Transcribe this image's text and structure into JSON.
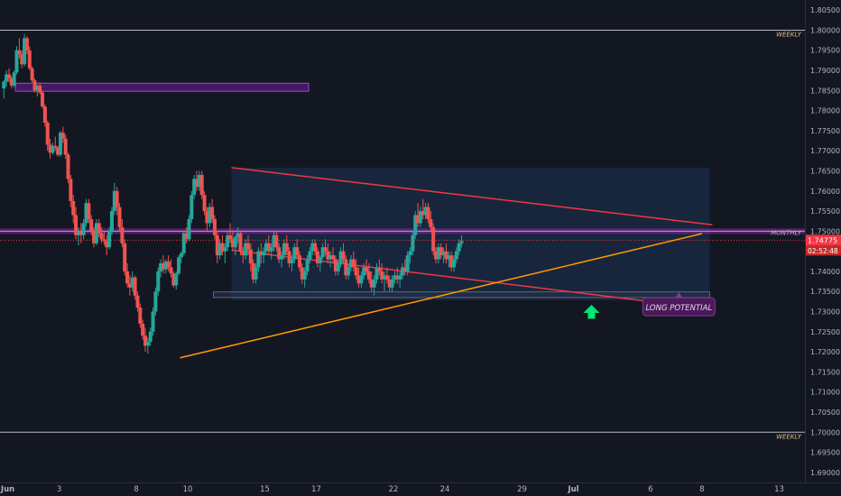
{
  "colors": {
    "background": "#131722",
    "up": "#26a69a",
    "down": "#ef5350",
    "axis_text": "#b2b5be",
    "level_line": "#d1d4dc",
    "monthly_line": "#9c27b0",
    "wedge_line": "#f23645",
    "trend_line": "#ff9800",
    "zone_fill": "#1c3a5e",
    "supply_box": "#6a1b9a",
    "arrow": "#00e676",
    "price_tag": "#f23645",
    "label_bg": "#4a1a5a"
  },
  "chart_data": {
    "type": "candlestick",
    "x_ticks": [
      {
        "label": "Jun",
        "x": 0
      },
      {
        "label": "3",
        "x": 2
      },
      {
        "label": "8",
        "x": 5
      },
      {
        "label": "10",
        "x": 7
      },
      {
        "label": "15",
        "x": 10
      },
      {
        "label": "17",
        "x": 12
      },
      {
        "label": "22",
        "x": 15
      },
      {
        "label": "24",
        "x": 17
      },
      {
        "label": "29",
        "x": 20
      },
      {
        "label": "Jul",
        "x": 22
      },
      {
        "label": "6",
        "x": 25
      },
      {
        "label": "8",
        "x": 27
      },
      {
        "label": "13",
        "x": 30
      }
    ],
    "y_ticks": [
      "1.80500",
      "1.80000",
      "1.79500",
      "1.79000",
      "1.78500",
      "1.78000",
      "1.77500",
      "1.77000",
      "1.76500",
      "1.76000",
      "1.75500",
      "1.75000",
      "1.74500",
      "1.74000",
      "1.73500",
      "1.73000",
      "1.72500",
      "1.72000",
      "1.71500",
      "1.71000",
      "1.70500",
      "1.70000",
      "1.69500",
      "1.69000"
    ],
    "ylim": [
      1.6875,
      1.8075
    ],
    "xlim": [
      -0.3,
      31
    ],
    "levels": [
      {
        "label": "WEEKLY",
        "price": 1.8,
        "x_start": -0.3,
        "x_end": 31
      },
      {
        "label": "WEEKLY",
        "price": 1.7,
        "x_start": -0.3,
        "x_end": 31
      },
      {
        "label": "MONTHLY",
        "price": 1.75,
        "x_start": -0.3,
        "x_end": 31
      }
    ],
    "current_price": {
      "value": 1.74775,
      "price_text": "1.74775",
      "timer": "02:52:48"
    },
    "supply_box": {
      "x_start": 0.3,
      "x_end": 11.7,
      "y_low": 1.7848,
      "y_high": 1.7868
    },
    "zone": {
      "x_start": 8.7,
      "x_end": 27.3,
      "y_low": 1.7328,
      "y_high": 1.7658
    },
    "zone_base": {
      "x_start": 8.0,
      "x_end": 27.3,
      "y_low": 1.7335,
      "y_high": 1.7349
    },
    "wedge_upper": {
      "x1": 8.7,
      "y1": 1.7658,
      "x2": 27.4,
      "y2": 1.7516
    },
    "wedge_lower": {
      "x1": 8.7,
      "y1": 1.7453,
      "x2": 27.4,
      "y2": 1.7306
    },
    "trend_line": {
      "x1": 6.7,
      "y1": 1.7185,
      "x2": 27.0,
      "y2": 1.7494
    },
    "annotation": {
      "text": "LONG POTENTIAL",
      "x": 26.1,
      "y": 1.7312
    },
    "arrow": {
      "x": 22.7,
      "y_top": 1.7317,
      "y_bottom": 1.7282
    },
    "candles": [
      [
        -0.15,
        1.7855,
        1.7875,
        1.783,
        1.7872
      ],
      [
        -0.05,
        1.7872,
        1.79,
        1.786,
        1.789
      ],
      [
        0.05,
        1.789,
        1.7905,
        1.787,
        1.788
      ],
      [
        0.15,
        1.788,
        1.7885,
        1.7855,
        1.7862
      ],
      [
        0.25,
        1.7862,
        1.79,
        1.7858,
        1.7895
      ],
      [
        0.35,
        1.7895,
        1.796,
        1.789,
        1.795
      ],
      [
        0.45,
        1.795,
        1.798,
        1.793,
        1.794
      ],
      [
        0.55,
        1.794,
        1.795,
        1.7905,
        1.7915
      ],
      [
        0.65,
        1.7915,
        1.799,
        1.791,
        1.798
      ],
      [
        0.75,
        1.798,
        1.7985,
        1.794,
        1.795
      ],
      [
        0.85,
        1.795,
        1.796,
        1.79,
        1.7905
      ],
      [
        0.95,
        1.7905,
        1.791,
        1.787,
        1.7875
      ],
      [
        1.05,
        1.7875,
        1.788,
        1.7845,
        1.785
      ],
      [
        1.15,
        1.785,
        1.7865,
        1.7835,
        1.7862
      ],
      [
        1.25,
        1.7862,
        1.787,
        1.784,
        1.7845
      ],
      [
        1.35,
        1.7845,
        1.785,
        1.7805,
        1.781
      ],
      [
        1.45,
        1.781,
        1.7815,
        1.776,
        1.777
      ],
      [
        1.55,
        1.777,
        1.7775,
        1.77,
        1.7715
      ],
      [
        1.65,
        1.7715,
        1.773,
        1.768,
        1.7695
      ],
      [
        1.75,
        1.7695,
        1.772,
        1.769,
        1.7712
      ],
      [
        1.85,
        1.7712,
        1.7735,
        1.77,
        1.7708
      ],
      [
        1.95,
        1.7708,
        1.7712,
        1.7685,
        1.769
      ],
      [
        2.05,
        1.769,
        1.775,
        1.7685,
        1.7745
      ],
      [
        2.15,
        1.7745,
        1.776,
        1.772,
        1.773
      ],
      [
        2.25,
        1.773,
        1.774,
        1.768,
        1.769
      ],
      [
        2.35,
        1.769,
        1.7695,
        1.762,
        1.763
      ],
      [
        2.45,
        1.763,
        1.764,
        1.756,
        1.7575
      ],
      [
        2.55,
        1.7575,
        1.759,
        1.752,
        1.754
      ],
      [
        2.65,
        1.754,
        1.756,
        1.748,
        1.749
      ],
      [
        2.75,
        1.749,
        1.751,
        1.7465,
        1.75
      ],
      [
        2.85,
        1.75,
        1.752,
        1.747,
        1.749
      ],
      [
        2.95,
        1.749,
        1.753,
        1.748,
        1.752
      ],
      [
        3.05,
        1.752,
        1.758,
        1.751,
        1.757
      ],
      [
        3.15,
        1.757,
        1.758,
        1.752,
        1.753
      ],
      [
        3.25,
        1.753,
        1.754,
        1.749,
        1.75
      ],
      [
        3.35,
        1.75,
        1.751,
        1.746,
        1.747
      ],
      [
        3.45,
        1.747,
        1.753,
        1.7465,
        1.752
      ],
      [
        3.55,
        1.752,
        1.753,
        1.7485,
        1.7495
      ],
      [
        3.65,
        1.7495,
        1.751,
        1.747,
        1.748
      ],
      [
        3.75,
        1.748,
        1.75,
        1.7465,
        1.7475
      ],
      [
        3.85,
        1.7475,
        1.749,
        1.744,
        1.746
      ],
      [
        3.95,
        1.746,
        1.751,
        1.7455,
        1.75
      ],
      [
        4.05,
        1.75,
        1.756,
        1.749,
        1.755
      ],
      [
        4.15,
        1.755,
        1.762,
        1.754,
        1.76
      ],
      [
        4.25,
        1.76,
        1.761,
        1.754,
        1.756
      ],
      [
        4.35,
        1.756,
        1.757,
        1.75,
        1.751
      ],
      [
        4.45,
        1.751,
        1.753,
        1.746,
        1.747
      ],
      [
        4.55,
        1.747,
        1.748,
        1.739,
        1.74
      ],
      [
        4.65,
        1.74,
        1.742,
        1.736,
        1.737
      ],
      [
        4.75,
        1.737,
        1.739,
        1.734,
        1.736
      ],
      [
        4.85,
        1.736,
        1.74,
        1.735,
        1.7385
      ],
      [
        4.95,
        1.7385,
        1.739,
        1.733,
        1.734
      ],
      [
        5.05,
        1.734,
        1.735,
        1.73,
        1.731
      ],
      [
        5.15,
        1.731,
        1.732,
        1.726,
        1.727
      ],
      [
        5.25,
        1.727,
        1.728,
        1.723,
        1.724
      ],
      [
        5.35,
        1.724,
        1.726,
        1.72,
        1.7215
      ],
      [
        5.45,
        1.7215,
        1.7235,
        1.7195,
        1.7225
      ],
      [
        5.55,
        1.7225,
        1.726,
        1.7215,
        1.725
      ],
      [
        5.65,
        1.725,
        1.731,
        1.724,
        1.73
      ],
      [
        5.75,
        1.73,
        1.736,
        1.729,
        1.735
      ],
      [
        5.85,
        1.735,
        1.741,
        1.734,
        1.74
      ],
      [
        5.95,
        1.74,
        1.743,
        1.7385,
        1.742
      ],
      [
        6.05,
        1.742,
        1.744,
        1.7395,
        1.7405
      ],
      [
        6.15,
        1.7405,
        1.743,
        1.7395,
        1.7425
      ],
      [
        6.25,
        1.7425,
        1.744,
        1.74,
        1.741
      ],
      [
        6.35,
        1.741,
        1.743,
        1.7385,
        1.7395
      ],
      [
        6.45,
        1.7395,
        1.74,
        1.736,
        1.7365
      ],
      [
        6.55,
        1.7365,
        1.74,
        1.7355,
        1.7395
      ],
      [
        6.65,
        1.7395,
        1.744,
        1.739,
        1.7435
      ],
      [
        6.75,
        1.7435,
        1.745,
        1.742,
        1.7445
      ],
      [
        6.85,
        1.7445,
        1.75,
        1.744,
        1.7495
      ],
      [
        6.95,
        1.7495,
        1.751,
        1.747,
        1.748
      ],
      [
        7.05,
        1.748,
        1.754,
        1.7475,
        1.753
      ],
      [
        7.15,
        1.753,
        1.76,
        1.752,
        1.759
      ],
      [
        7.25,
        1.759,
        1.764,
        1.758,
        1.763
      ],
      [
        7.35,
        1.763,
        1.765,
        1.76,
        1.761
      ],
      [
        7.45,
        1.761,
        1.765,
        1.76,
        1.764
      ],
      [
        7.55,
        1.764,
        1.765,
        1.758,
        1.759
      ],
      [
        7.65,
        1.759,
        1.76,
        1.754,
        1.755
      ],
      [
        7.75,
        1.755,
        1.756,
        1.75,
        1.752
      ],
      [
        7.85,
        1.752,
        1.757,
        1.751,
        1.756
      ],
      [
        7.95,
        1.756,
        1.758,
        1.752,
        1.753
      ],
      [
        8.05,
        1.753,
        1.754,
        1.748,
        1.749
      ],
      [
        8.15,
        1.749,
        1.75,
        1.742,
        1.744
      ],
      [
        8.25,
        1.744,
        1.748,
        1.743,
        1.747
      ],
      [
        8.35,
        1.747,
        1.749,
        1.744,
        1.745
      ],
      [
        8.45,
        1.745,
        1.747,
        1.742,
        1.746
      ],
      [
        8.55,
        1.746,
        1.75,
        1.745,
        1.749
      ],
      [
        8.65,
        1.749,
        1.752,
        1.747,
        1.748
      ],
      [
        8.75,
        1.748,
        1.75,
        1.745,
        1.746
      ],
      [
        8.85,
        1.746,
        1.749,
        1.744,
        1.7485
      ],
      [
        8.95,
        1.7485,
        1.751,
        1.747,
        1.7495
      ],
      [
        9.05,
        1.7495,
        1.75,
        1.744,
        1.745
      ],
      [
        9.15,
        1.745,
        1.746,
        1.742,
        1.744
      ],
      [
        9.25,
        1.744,
        1.748,
        1.743,
        1.747
      ],
      [
        9.35,
        1.747,
        1.749,
        1.744,
        1.7455
      ],
      [
        9.45,
        1.7455,
        1.747,
        1.74,
        1.742
      ],
      [
        9.55,
        1.742,
        1.743,
        1.737,
        1.738
      ],
      [
        9.65,
        1.738,
        1.742,
        1.737,
        1.741
      ],
      [
        9.75,
        1.741,
        1.746,
        1.74,
        1.745
      ],
      [
        9.85,
        1.745,
        1.747,
        1.742,
        1.744
      ],
      [
        9.95,
        1.744,
        1.746,
        1.742,
        1.745
      ],
      [
        10.05,
        1.745,
        1.748,
        1.744,
        1.747
      ],
      [
        10.15,
        1.747,
        1.749,
        1.744,
        1.745
      ],
      [
        10.25,
        1.745,
        1.747,
        1.743,
        1.746
      ],
      [
        10.35,
        1.746,
        1.75,
        1.745,
        1.749
      ],
      [
        10.45,
        1.749,
        1.75,
        1.745,
        1.746
      ],
      [
        10.55,
        1.746,
        1.747,
        1.742,
        1.743
      ],
      [
        10.65,
        1.743,
        1.745,
        1.741,
        1.744
      ],
      [
        10.75,
        1.744,
        1.748,
        1.743,
        1.747
      ],
      [
        10.85,
        1.747,
        1.749,
        1.744,
        1.745
      ],
      [
        10.95,
        1.745,
        1.746,
        1.741,
        1.742
      ],
      [
        11.05,
        1.742,
        1.744,
        1.74,
        1.743
      ],
      [
        11.15,
        1.743,
        1.747,
        1.742,
        1.746
      ],
      [
        11.25,
        1.746,
        1.748,
        1.743,
        1.744
      ],
      [
        11.35,
        1.744,
        1.745,
        1.74,
        1.741
      ],
      [
        11.45,
        1.741,
        1.742,
        1.737,
        1.738
      ],
      [
        11.55,
        1.738,
        1.741,
        1.736,
        1.74
      ],
      [
        11.65,
        1.74,
        1.744,
        1.739,
        1.743
      ],
      [
        11.75,
        1.743,
        1.746,
        1.742,
        1.745
      ],
      [
        11.85,
        1.745,
        1.748,
        1.744,
        1.747
      ],
      [
        11.95,
        1.747,
        1.748,
        1.744,
        1.745
      ],
      [
        12.05,
        1.745,
        1.746,
        1.741,
        1.742
      ],
      [
        12.15,
        1.742,
        1.744,
        1.74,
        1.7435
      ],
      [
        12.25,
        1.7435,
        1.747,
        1.743,
        1.746
      ],
      [
        12.35,
        1.746,
        1.748,
        1.744,
        1.745
      ],
      [
        12.45,
        1.745,
        1.747,
        1.742,
        1.743
      ],
      [
        12.55,
        1.743,
        1.745,
        1.741,
        1.744
      ],
      [
        12.65,
        1.744,
        1.746,
        1.742,
        1.743
      ],
      [
        12.75,
        1.743,
        1.744,
        1.739,
        1.74
      ],
      [
        12.85,
        1.74,
        1.743,
        1.739,
        1.742
      ],
      [
        12.95,
        1.742,
        1.746,
        1.741,
        1.745
      ],
      [
        13.05,
        1.745,
        1.747,
        1.742,
        1.743
      ],
      [
        13.15,
        1.743,
        1.744,
        1.738,
        1.739
      ],
      [
        13.25,
        1.739,
        1.742,
        1.738,
        1.741
      ],
      [
        13.35,
        1.741,
        1.744,
        1.74,
        1.743
      ],
      [
        13.45,
        1.743,
        1.745,
        1.74,
        1.741
      ],
      [
        13.55,
        1.741,
        1.743,
        1.738,
        1.739
      ],
      [
        13.65,
        1.739,
        1.741,
        1.736,
        1.737
      ],
      [
        13.75,
        1.737,
        1.74,
        1.736,
        1.739
      ],
      [
        13.85,
        1.739,
        1.742,
        1.738,
        1.741
      ],
      [
        13.95,
        1.741,
        1.743,
        1.739,
        1.74
      ],
      [
        14.05,
        1.74,
        1.742,
        1.737,
        1.738
      ],
      [
        14.15,
        1.738,
        1.74,
        1.735,
        1.736
      ],
      [
        14.25,
        1.736,
        1.739,
        1.734,
        1.738
      ],
      [
        14.35,
        1.738,
        1.742,
        1.737,
        1.741
      ],
      [
        14.45,
        1.741,
        1.743,
        1.739,
        1.74
      ],
      [
        14.55,
        1.74,
        1.742,
        1.737,
        1.738
      ],
      [
        14.65,
        1.738,
        1.74,
        1.735,
        1.739
      ],
      [
        14.75,
        1.739,
        1.741,
        1.737,
        1.738
      ],
      [
        14.85,
        1.738,
        1.739,
        1.735,
        1.736
      ],
      [
        14.95,
        1.736,
        1.739,
        1.735,
        1.738
      ],
      [
        15.05,
        1.738,
        1.74,
        1.737,
        1.739
      ],
      [
        15.15,
        1.739,
        1.741,
        1.737,
        1.738
      ],
      [
        15.25,
        1.738,
        1.74,
        1.736,
        1.739
      ],
      [
        15.35,
        1.739,
        1.742,
        1.738,
        1.741
      ],
      [
        15.45,
        1.741,
        1.743,
        1.739,
        1.74
      ],
      [
        15.55,
        1.74,
        1.745,
        1.739,
        1.744
      ],
      [
        15.65,
        1.744,
        1.746,
        1.742,
        1.745
      ],
      [
        15.75,
        1.745,
        1.75,
        1.744,
        1.749
      ],
      [
        15.85,
        1.749,
        1.755,
        1.748,
        1.754
      ],
      [
        15.95,
        1.754,
        1.757,
        1.751,
        1.752
      ],
      [
        16.05,
        1.752,
        1.756,
        1.751,
        1.755
      ],
      [
        16.15,
        1.755,
        1.758,
        1.753,
        1.754
      ],
      [
        16.25,
        1.754,
        1.757,
        1.753,
        1.756
      ],
      [
        16.35,
        1.756,
        1.757,
        1.752,
        1.753
      ],
      [
        16.45,
        1.753,
        1.755,
        1.75,
        1.751
      ],
      [
        16.55,
        1.751,
        1.752,
        1.744,
        1.745
      ],
      [
        16.65,
        1.745,
        1.746,
        1.742,
        1.743
      ],
      [
        16.75,
        1.743,
        1.747,
        1.742,
        1.746
      ],
      [
        16.85,
        1.746,
        1.747,
        1.743,
        1.744
      ],
      [
        16.95,
        1.744,
        1.746,
        1.742,
        1.745
      ],
      [
        17.05,
        1.745,
        1.747,
        1.742,
        1.743
      ],
      [
        17.15,
        1.743,
        1.745,
        1.741,
        1.744
      ],
      [
        17.25,
        1.744,
        1.745,
        1.74,
        1.741
      ],
      [
        17.35,
        1.741,
        1.744,
        1.74,
        1.743
      ],
      [
        17.45,
        1.743,
        1.746,
        1.742,
        1.745
      ],
      [
        17.55,
        1.745,
        1.748,
        1.744,
        1.747
      ],
      [
        17.65,
        1.747,
        1.749,
        1.746,
        1.7475
      ]
    ]
  }
}
